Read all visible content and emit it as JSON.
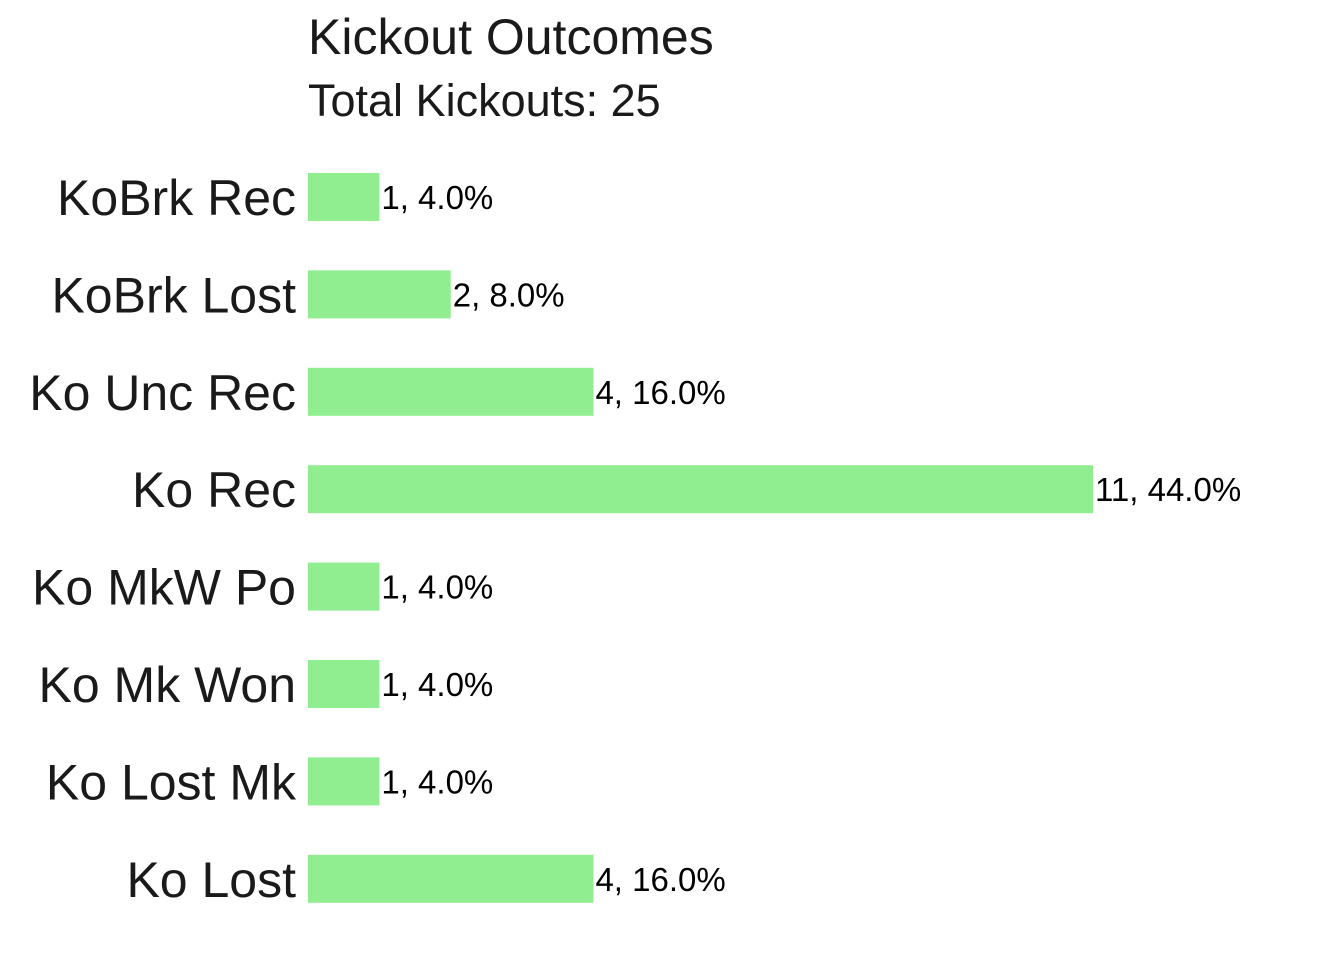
{
  "chart_data": {
    "type": "bar",
    "orientation": "horizontal",
    "title": "Kickout Outcomes",
    "subtitle": "Total Kickouts: 25",
    "categories": [
      "KoBrk Rec",
      "KoBrk Lost",
      "Ko Unc Rec",
      "Ko Rec",
      "Ko MkW Po",
      "Ko Mk Won",
      "Ko Lost Mk",
      "Ko Lost"
    ],
    "values": [
      1,
      2,
      4,
      11,
      1,
      1,
      1,
      4
    ],
    "data_labels": [
      "1, 4.0%",
      "2, 8.0%",
      "4, 16.0%",
      "11, 44.0%",
      "1, 4.0%",
      "1, 4.0%",
      "1, 4.0%",
      "4, 16.0%"
    ],
    "xlim": [
      0,
      11
    ],
    "grid": false,
    "bar_color": "#90EE90"
  }
}
